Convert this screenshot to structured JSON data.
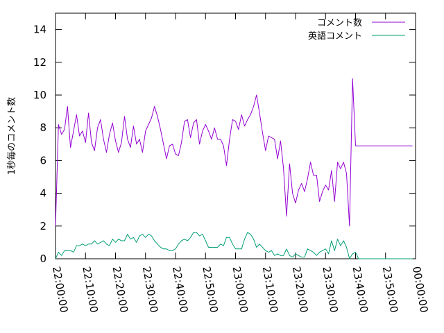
{
  "chart_data": {
    "type": "line",
    "xlabel": "",
    "ylabel": "1秒毎のコメント数",
    "ylim": [
      0,
      15
    ],
    "yticks": [
      "0",
      "2",
      "4",
      "6",
      "8",
      "10",
      "12",
      "14"
    ],
    "xlim": [
      "22:00:00",
      "00:00:00"
    ],
    "xticks": [
      "22:00:00",
      "22:10:00",
      "22:20:00",
      "22:30:00",
      "22:40:00",
      "22:50:00",
      "23:00:00",
      "23:10:00",
      "23:20:00",
      "23:30:00",
      "23:40:00",
      "23:50:00",
      "00:00:00"
    ],
    "grid": false,
    "legend_position": "top-right",
    "series": [
      {
        "name": "コメント数",
        "color": "#9400d3",
        "x": [
          "22:00:00",
          "22:01:00",
          "22:02:00",
          "22:03:00",
          "22:04:00",
          "22:05:00",
          "22:06:00",
          "22:07:00",
          "22:08:00",
          "22:09:00",
          "22:10:00",
          "22:11:00",
          "22:12:00",
          "22:13:00",
          "22:14:00",
          "22:15:00",
          "22:16:00",
          "22:17:00",
          "22:18:00",
          "22:19:00",
          "22:20:00",
          "22:21:00",
          "22:22:00",
          "22:23:00",
          "22:24:00",
          "22:25:00",
          "22:26:00",
          "22:27:00",
          "22:28:00",
          "22:29:00",
          "22:30:00",
          "22:31:00",
          "22:32:00",
          "22:33:00",
          "22:34:00",
          "22:35:00",
          "22:36:00",
          "22:37:00",
          "22:38:00",
          "22:39:00",
          "22:40:00",
          "22:41:00",
          "22:42:00",
          "22:43:00",
          "22:44:00",
          "22:45:00",
          "22:46:00",
          "22:47:00",
          "22:48:00",
          "22:49:00",
          "22:50:00",
          "22:51:00",
          "22:52:00",
          "22:53:00",
          "22:54:00",
          "22:55:00",
          "22:56:00",
          "22:57:00",
          "22:58:00",
          "22:59:00",
          "23:00:00",
          "23:01:00",
          "23:02:00",
          "23:03:00",
          "23:04:00",
          "23:05:00",
          "23:06:00",
          "23:07:00",
          "23:08:00",
          "23:09:00",
          "23:10:00",
          "23:11:00",
          "23:12:00",
          "23:13:00",
          "23:14:00",
          "23:15:00",
          "23:16:00",
          "23:17:00",
          "23:18:00",
          "23:19:00",
          "23:20:00",
          "23:21:00",
          "23:22:00",
          "23:23:00",
          "23:24:00",
          "23:25:00",
          "23:26:00",
          "23:27:00",
          "23:28:00",
          "23:29:00",
          "23:30:00",
          "23:31:00",
          "23:32:00",
          "23:33:00",
          "23:34:00",
          "23:35:00",
          "23:36:00",
          "23:37:00",
          "23:38:00",
          "23:39:00",
          "23:40:00",
          "23:41:00",
          "23:42:00",
          "23:43:00",
          "23:44:00",
          "23:45:00",
          "23:46:00",
          "23:47:00",
          "23:48:00",
          "23:49:00",
          "23:50:00",
          "23:51:00",
          "23:52:00",
          "23:53:00",
          "23:54:00",
          "23:55:00",
          "23:56:00",
          "23:57:00",
          "23:58:00",
          "23:59:00"
        ],
        "values": [
          2.0,
          8.2,
          7.6,
          7.9,
          9.3,
          6.8,
          7.8,
          8.8,
          7.5,
          7.8,
          7.1,
          8.9,
          7.1,
          6.6,
          8.0,
          8.5,
          7.3,
          6.5,
          7.6,
          8.3,
          7.2,
          6.5,
          7.1,
          8.7,
          7.3,
          6.8,
          8.1,
          7.0,
          7.3,
          6.5,
          7.8,
          8.2,
          8.6,
          9.3,
          8.7,
          7.9,
          7.0,
          6.1,
          6.9,
          7.0,
          6.4,
          6.3,
          7.1,
          8.4,
          8.5,
          7.4,
          8.3,
          8.5,
          7.0,
          7.8,
          8.2,
          7.8,
          7.3,
          8.0,
          7.3,
          7.3,
          6.9,
          5.7,
          7.3,
          8.5,
          8.4,
          7.9,
          8.8,
          8.1,
          8.5,
          8.8,
          9.3,
          10.0,
          8.9,
          7.7,
          6.6,
          7.5,
          7.4,
          7.3,
          6.1,
          7.2,
          5.5,
          2.6,
          5.8,
          4.0,
          3.4,
          4.2,
          4.6,
          4.1,
          4.9,
          5.9,
          5.1,
          5.1,
          3.5,
          4.1,
          4.5,
          4.2,
          5.4,
          3.5,
          5.9,
          5.5,
          5.9,
          5.2,
          2.0,
          11.0,
          6.9,
          6.9,
          6.9,
          6.9,
          6.9,
          6.9,
          6.9,
          6.9,
          6.9,
          6.9,
          6.9,
          6.9,
          6.9,
          6.9,
          6.9,
          6.9,
          6.9,
          6.9,
          6.9,
          6.9
        ]
      },
      {
        "name": "英語コメント",
        "color": "#009e73",
        "x": [
          "22:00:00",
          "22:01:00",
          "22:02:00",
          "22:03:00",
          "22:04:00",
          "22:05:00",
          "22:06:00",
          "22:07:00",
          "22:08:00",
          "22:09:00",
          "22:10:00",
          "22:11:00",
          "22:12:00",
          "22:13:00",
          "22:14:00",
          "22:15:00",
          "22:16:00",
          "22:17:00",
          "22:18:00",
          "22:19:00",
          "22:20:00",
          "22:21:00",
          "22:22:00",
          "22:23:00",
          "22:24:00",
          "22:25:00",
          "22:26:00",
          "22:27:00",
          "22:28:00",
          "22:29:00",
          "22:30:00",
          "22:31:00",
          "22:32:00",
          "22:33:00",
          "22:34:00",
          "22:35:00",
          "22:36:00",
          "22:37:00",
          "22:38:00",
          "22:39:00",
          "22:40:00",
          "22:41:00",
          "22:42:00",
          "22:43:00",
          "22:44:00",
          "22:45:00",
          "22:46:00",
          "22:47:00",
          "22:48:00",
          "22:49:00",
          "22:50:00",
          "22:51:00",
          "22:52:00",
          "22:53:00",
          "22:54:00",
          "22:55:00",
          "22:56:00",
          "22:57:00",
          "22:58:00",
          "22:59:00",
          "23:00:00",
          "23:01:00",
          "23:02:00",
          "23:03:00",
          "23:04:00",
          "23:05:00",
          "23:06:00",
          "23:07:00",
          "23:08:00",
          "23:09:00",
          "23:10:00",
          "23:11:00",
          "23:12:00",
          "23:13:00",
          "23:14:00",
          "23:15:00",
          "23:16:00",
          "23:17:00",
          "23:18:00",
          "23:19:00",
          "23:20:00",
          "23:21:00",
          "23:22:00",
          "23:23:00",
          "23:24:00",
          "23:25:00",
          "23:26:00",
          "23:27:00",
          "23:28:00",
          "23:29:00",
          "23:30:00",
          "23:31:00",
          "23:32:00",
          "23:33:00",
          "23:34:00",
          "23:35:00",
          "23:36:00",
          "23:37:00",
          "23:38:00",
          "23:39:00",
          "23:40:00",
          "23:41:00",
          "23:42:00",
          "23:43:00",
          "23:44:00",
          "23:45:00",
          "23:46:00",
          "23:47:00",
          "23:48:00",
          "23:49:00",
          "23:50:00",
          "23:51:00",
          "23:52:00",
          "23:53:00",
          "23:54:00",
          "23:55:00",
          "23:56:00",
          "23:57:00",
          "23:58:00",
          "23:59:00"
        ],
        "values": [
          0.0,
          0.4,
          0.2,
          0.5,
          0.5,
          0.5,
          0.4,
          0.8,
          0.8,
          0.9,
          0.8,
          0.9,
          0.9,
          1.1,
          0.9,
          1.0,
          1.1,
          0.9,
          0.8,
          1.2,
          1.0,
          1.2,
          1.1,
          1.1,
          1.5,
          1.2,
          1.3,
          1.0,
          1.4,
          1.5,
          1.3,
          1.5,
          1.4,
          1.1,
          0.9,
          0.7,
          0.6,
          0.6,
          0.5,
          0.5,
          0.6,
          0.9,
          1.1,
          1.2,
          1.1,
          1.3,
          1.6,
          1.6,
          1.4,
          1.5,
          1.1,
          0.7,
          0.7,
          0.7,
          0.7,
          0.9,
          0.8,
          1.3,
          1.3,
          0.9,
          0.6,
          0.6,
          0.6,
          1.2,
          1.6,
          1.5,
          1.2,
          0.7,
          0.9,
          0.7,
          0.5,
          0.4,
          0.5,
          0.2,
          0.3,
          0.2,
          0.2,
          0.6,
          0.2,
          0.1,
          0.3,
          0.2,
          0.1,
          0.1,
          0.6,
          0.5,
          0.4,
          0.2,
          0.4,
          0.5,
          0.6,
          0.3,
          1.1,
          0.5,
          1.2,
          0.8,
          1.1,
          0.7,
          0.0,
          0.3,
          0.4,
          0.0,
          0.0,
          0.0,
          0.0,
          0.0,
          0.0,
          0.0,
          0.0,
          0.0,
          0.0,
          0.0,
          0.0,
          0.0,
          0.0,
          0.0,
          0.0,
          0.0,
          0.0,
          0.0
        ]
      }
    ]
  }
}
